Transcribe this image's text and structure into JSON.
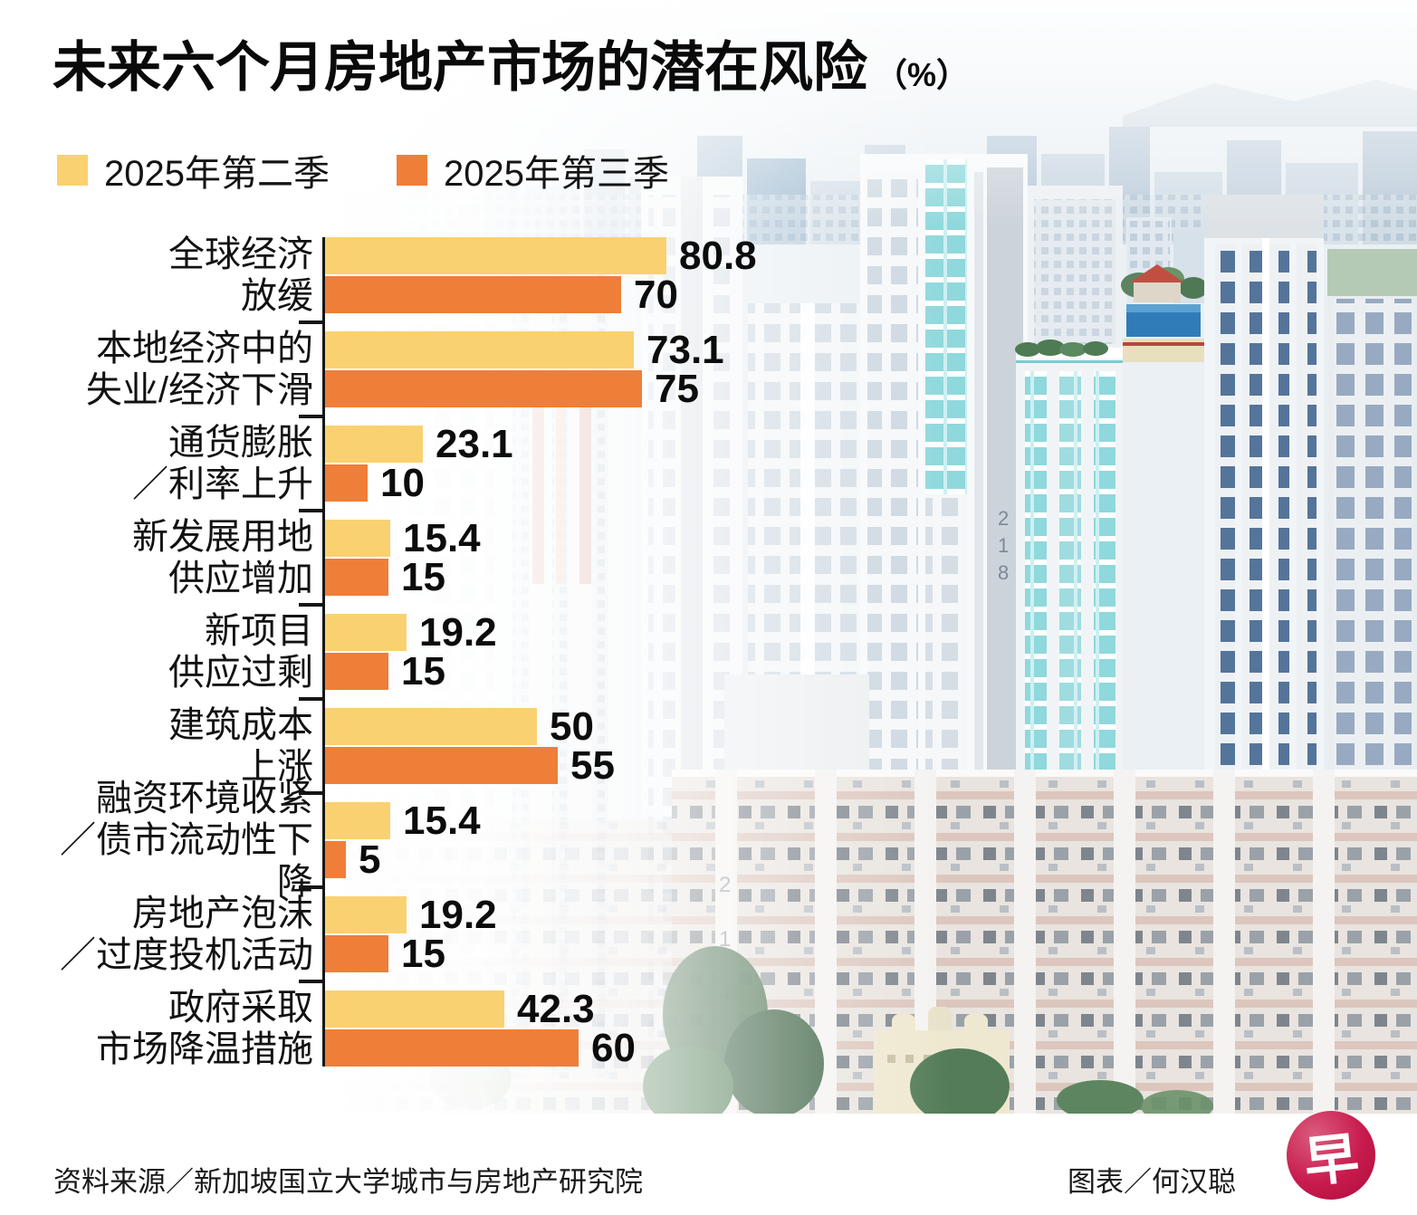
{
  "title": {
    "text": "未来六个月房地产市场的潜在风险",
    "unit": "（%）"
  },
  "legend": {
    "items": [
      {
        "label": "2025年第二季",
        "color": "#FAD171"
      },
      {
        "label": "2025年第三季",
        "color": "#EF7E39"
      }
    ]
  },
  "chart_data": {
    "type": "bar",
    "orientation": "horizontal",
    "unit": "%",
    "title": "未来六个月房地产市场的潜在风险（%）",
    "categories": [
      "全球经济\n放缓",
      "本地经济中的\n失业/经济下滑",
      "通货膨胀\n／利率上升",
      "新发展用地\n供应增加",
      "新项目\n供应过剩",
      "建筑成本\n上涨",
      "融资环境收紧\n／债市流动性下降",
      "房地产泡沫\n／过度投机活动",
      "政府采取\n市场降温措施"
    ],
    "series": [
      {
        "name": "2025年第二季",
        "color": "#FAD171",
        "values": [
          80.8,
          73.1,
          23.1,
          15.4,
          19.2,
          50,
          15.4,
          19.2,
          42.3
        ]
      },
      {
        "name": "2025年第三季",
        "color": "#EF7E39",
        "values": [
          70,
          75,
          10,
          15,
          15,
          55,
          5,
          15,
          60
        ]
      }
    ],
    "xlim": [
      0,
      85
    ],
    "value_labels": true,
    "gridlines": false,
    "legend_position": "top-left"
  },
  "footer": {
    "source": "资料来源／新加坡国立大学城市与房地产研究院",
    "credit": "图表／何汉聪",
    "logo_char": "早",
    "logo_color": "#C81A4D"
  }
}
